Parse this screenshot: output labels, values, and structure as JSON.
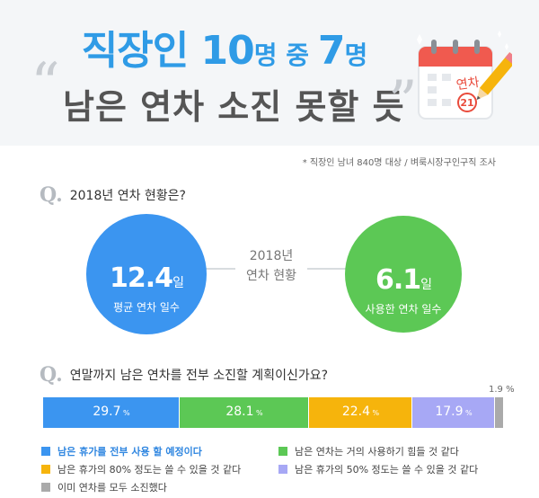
{
  "header": {
    "title_part1": "직장인 ",
    "title_num1": "10",
    "title_unit1": "명 중 ",
    "title_num2": "7",
    "title_unit2": "명",
    "subtitle": "남은 연차 소진 못할 듯",
    "quote_open": "“",
    "quote_close": "”",
    "calendar_text": "연차",
    "calendar_day": "21"
  },
  "source_note": "* 직장인 남녀 840명 대상 / 벼룩시장구인구직 조사",
  "question1": {
    "mark": "Q.",
    "text": "2018년 연차 현황은?",
    "center_label_line1": "2018년",
    "center_label_line2": "연차 현황",
    "average": {
      "value": "12.4",
      "unit": "일",
      "label": "평균 연차 일수"
    },
    "used": {
      "value": "6.1",
      "unit": "일",
      "label": "사용한 연차 일수"
    }
  },
  "question2": {
    "mark": "Q.",
    "text": "연말까지 남은 연차를 전부 소진할 계획이신가요?"
  },
  "colors": {
    "blue": "#3b95f0",
    "green": "#5cc855",
    "yellow": "#f6b40c",
    "lavender": "#a7a8f5",
    "gray": "#aaaaaa"
  },
  "chart_data": {
    "type": "bar",
    "orientation": "horizontal-stacked-100",
    "unit": "%",
    "categories": [
      "남은 휴가를 전부 사용 할 예정이다",
      "남은 연차는 거의 사용하기 힘들 것 같다",
      "남은 휴가의 80% 정도는 쓸 수 있을 것 같다",
      "남은 휴가의 50% 정도는 쓸 수 있을 것 같다",
      "이미 연차를 모두 소진했다"
    ],
    "values": [
      29.7,
      28.1,
      22.4,
      17.9,
      1.9
    ],
    "colors": [
      "#3b95f0",
      "#5cc855",
      "#f6b40c",
      "#a7a8f5",
      "#aaaaaa"
    ],
    "legend_placement": "bottom"
  }
}
